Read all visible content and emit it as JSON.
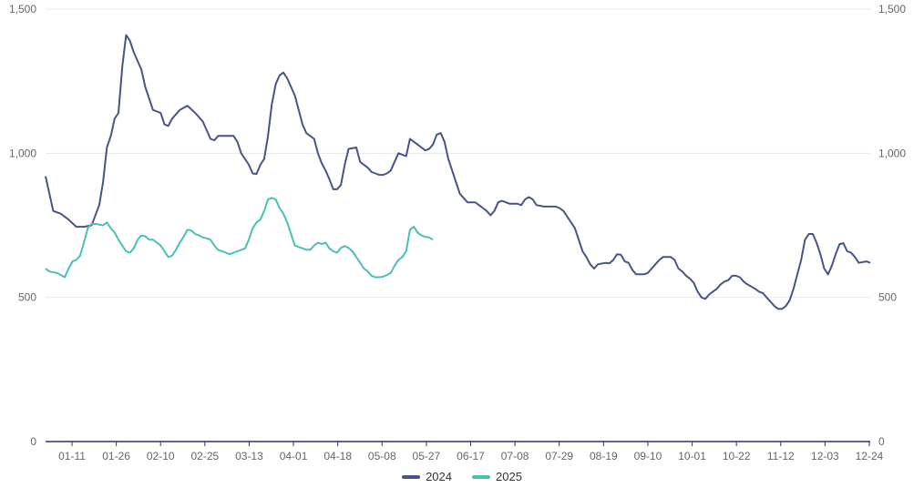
{
  "chart_data": {
    "type": "line",
    "title": "",
    "xlabel": "",
    "ylabel": "",
    "x_tick_labels": [
      "01-11",
      "01-26",
      "02-10",
      "02-25",
      "03-13",
      "04-01",
      "04-18",
      "05-08",
      "05-27",
      "06-17",
      "07-08",
      "07-29",
      "08-19",
      "09-10",
      "10-01",
      "10-22",
      "11-12",
      "12-03",
      "12-24"
    ],
    "y_ticks_left": [
      "0",
      "500",
      "1,000",
      "1,500"
    ],
    "y_ticks_right": [
      "0",
      "500",
      "1,000",
      "1,500"
    ],
    "ylim": [
      0,
      1500
    ],
    "grid": true,
    "legend_position": "bottom-center",
    "series": [
      {
        "name": "2024",
        "color": "#475485",
        "points": [
          [
            0,
            920
          ],
          [
            1,
            860
          ],
          [
            2,
            800
          ],
          [
            4,
            790
          ],
          [
            6,
            770
          ],
          [
            8,
            745
          ],
          [
            10,
            745
          ],
          [
            12,
            750
          ],
          [
            14,
            820
          ],
          [
            15,
            900
          ],
          [
            16,
            1020
          ],
          [
            17,
            1060
          ],
          [
            18,
            1120
          ],
          [
            19,
            1140
          ],
          [
            20,
            1300
          ],
          [
            21,
            1410
          ],
          [
            22,
            1390
          ],
          [
            23,
            1350
          ],
          [
            24,
            1320
          ],
          [
            25,
            1290
          ],
          [
            26,
            1230
          ],
          [
            27,
            1190
          ],
          [
            28,
            1150
          ],
          [
            30,
            1140
          ],
          [
            31,
            1100
          ],
          [
            32,
            1095
          ],
          [
            33,
            1120
          ],
          [
            35,
            1150
          ],
          [
            37,
            1165
          ],
          [
            39,
            1140
          ],
          [
            41,
            1110
          ],
          [
            42,
            1080
          ],
          [
            43,
            1050
          ],
          [
            44,
            1045
          ],
          [
            45,
            1060
          ],
          [
            49,
            1060
          ],
          [
            50,
            1040
          ],
          [
            51,
            1000
          ],
          [
            53,
            960
          ],
          [
            54,
            930
          ],
          [
            55,
            928
          ],
          [
            56,
            960
          ],
          [
            57,
            980
          ],
          [
            58,
            1060
          ],
          [
            59,
            1170
          ],
          [
            60,
            1240
          ],
          [
            61,
            1270
          ],
          [
            62,
            1280
          ],
          [
            63,
            1260
          ],
          [
            64,
            1230
          ],
          [
            65,
            1200
          ],
          [
            66,
            1150
          ],
          [
            67,
            1100
          ],
          [
            68,
            1070
          ],
          [
            70,
            1050
          ],
          [
            71,
            1000
          ],
          [
            72,
            965
          ],
          [
            73,
            940
          ],
          [
            74,
            910
          ],
          [
            75,
            875
          ],
          [
            76,
            875
          ],
          [
            77,
            890
          ],
          [
            78,
            960
          ],
          [
            79,
            1015
          ],
          [
            81,
            1020
          ],
          [
            82,
            970
          ],
          [
            84,
            950
          ],
          [
            85,
            935
          ],
          [
            86,
            930
          ],
          [
            87,
            925
          ],
          [
            88,
            925
          ],
          [
            89,
            930
          ],
          [
            90,
            940
          ],
          [
            91,
            970
          ],
          [
            92,
            1000
          ],
          [
            93,
            995
          ],
          [
            94,
            990
          ],
          [
            95,
            1050
          ],
          [
            96,
            1040
          ],
          [
            97,
            1030
          ],
          [
            98,
            1020
          ],
          [
            99,
            1010
          ],
          [
            100,
            1015
          ],
          [
            101,
            1030
          ],
          [
            102,
            1065
          ],
          [
            103,
            1070
          ],
          [
            104,
            1040
          ],
          [
            105,
            980
          ],
          [
            106,
            940
          ],
          [
            107,
            900
          ],
          [
            108,
            860
          ],
          [
            109,
            845
          ],
          [
            110,
            830
          ],
          [
            112,
            830
          ],
          [
            113,
            820
          ],
          [
            114,
            810
          ],
          [
            115,
            800
          ],
          [
            116,
            785
          ],
          [
            117,
            800
          ],
          [
            118,
            830
          ],
          [
            119,
            835
          ],
          [
            121,
            825
          ],
          [
            123,
            825
          ],
          [
            124,
            820
          ],
          [
            125,
            840
          ],
          [
            126,
            848
          ],
          [
            127,
            840
          ],
          [
            128,
            820
          ],
          [
            130,
            815
          ],
          [
            133,
            815
          ],
          [
            134,
            810
          ],
          [
            135,
            800
          ],
          [
            136,
            780
          ],
          [
            137,
            760
          ],
          [
            138,
            740
          ],
          [
            139,
            700
          ],
          [
            140,
            660
          ],
          [
            141,
            640
          ],
          [
            142,
            615
          ],
          [
            143,
            600
          ],
          [
            144,
            615
          ],
          [
            146,
            620
          ],
          [
            147,
            618
          ],
          [
            148,
            630
          ],
          [
            149,
            650
          ],
          [
            150,
            648
          ],
          [
            151,
            625
          ],
          [
            152,
            620
          ],
          [
            153,
            595
          ],
          [
            154,
            580
          ],
          [
            156,
            580
          ],
          [
            157,
            585
          ],
          [
            158,
            600
          ],
          [
            159,
            615
          ],
          [
            160,
            630
          ],
          [
            161,
            640
          ],
          [
            163,
            640
          ],
          [
            164,
            630
          ],
          [
            165,
            600
          ],
          [
            166,
            590
          ],
          [
            167,
            575
          ],
          [
            168,
            565
          ],
          [
            169,
            550
          ],
          [
            170,
            520
          ],
          [
            171,
            500
          ],
          [
            172,
            495
          ],
          [
            173,
            510
          ],
          [
            174,
            520
          ],
          [
            175,
            530
          ],
          [
            176,
            545
          ],
          [
            177,
            555
          ],
          [
            178,
            560
          ],
          [
            179,
            575
          ],
          [
            180,
            575
          ],
          [
            181,
            570
          ],
          [
            182,
            555
          ],
          [
            183,
            545
          ],
          [
            185,
            530
          ],
          [
            186,
            520
          ],
          [
            187,
            515
          ],
          [
            188,
            500
          ],
          [
            189,
            485
          ],
          [
            190,
            470
          ],
          [
            191,
            460
          ],
          [
            192,
            460
          ],
          [
            193,
            470
          ],
          [
            194,
            490
          ],
          [
            195,
            530
          ],
          [
            196,
            580
          ],
          [
            197,
            630
          ],
          [
            198,
            700
          ],
          [
            199,
            720
          ],
          [
            200,
            720
          ],
          [
            201,
            690
          ],
          [
            202,
            650
          ],
          [
            203,
            600
          ],
          [
            204,
            580
          ],
          [
            205,
            610
          ],
          [
            206,
            650
          ],
          [
            207,
            685
          ],
          [
            208,
            688
          ],
          [
            209,
            660
          ],
          [
            210,
            655
          ],
          [
            211,
            640
          ],
          [
            212,
            620
          ],
          [
            214,
            625
          ],
          [
            215,
            620
          ]
        ]
      },
      {
        "name": "2025",
        "color": "#4bbfb7",
        "points": [
          [
            0,
            600
          ],
          [
            1,
            590
          ],
          [
            3,
            585
          ],
          [
            5,
            570
          ],
          [
            6,
            600
          ],
          [
            7,
            625
          ],
          [
            8,
            630
          ],
          [
            9,
            645
          ],
          [
            10,
            690
          ],
          [
            11,
            740
          ],
          [
            12,
            755
          ],
          [
            13,
            755
          ],
          [
            15,
            750
          ],
          [
            16,
            760
          ],
          [
            17,
            740
          ],
          [
            18,
            725
          ],
          [
            19,
            700
          ],
          [
            20,
            680
          ],
          [
            21,
            660
          ],
          [
            22,
            655
          ],
          [
            23,
            670
          ],
          [
            24,
            700
          ],
          [
            25,
            715
          ],
          [
            26,
            712
          ],
          [
            27,
            700
          ],
          [
            28,
            700
          ],
          [
            29,
            690
          ],
          [
            30,
            680
          ],
          [
            31,
            660
          ],
          [
            32,
            640
          ],
          [
            33,
            645
          ],
          [
            34,
            665
          ],
          [
            35,
            690
          ],
          [
            36,
            710
          ],
          [
            37,
            735
          ],
          [
            38,
            732
          ],
          [
            39,
            720
          ],
          [
            40,
            715
          ],
          [
            41,
            708
          ],
          [
            42,
            705
          ],
          [
            43,
            700
          ],
          [
            44,
            680
          ],
          [
            45,
            665
          ],
          [
            46,
            660
          ],
          [
            47,
            655
          ],
          [
            48,
            650
          ],
          [
            49,
            655
          ],
          [
            50,
            660
          ],
          [
            51,
            665
          ],
          [
            52,
            670
          ],
          [
            53,
            700
          ],
          [
            54,
            740
          ],
          [
            55,
            760
          ],
          [
            56,
            770
          ],
          [
            57,
            800
          ],
          [
            58,
            840
          ],
          [
            59,
            845
          ],
          [
            60,
            840
          ],
          [
            61,
            810
          ],
          [
            62,
            790
          ],
          [
            63,
            760
          ],
          [
            64,
            720
          ],
          [
            65,
            680
          ],
          [
            66,
            675
          ],
          [
            67,
            670
          ],
          [
            68,
            665
          ],
          [
            69,
            665
          ],
          [
            70,
            680
          ],
          [
            71,
            690
          ],
          [
            72,
            685
          ],
          [
            73,
            690
          ],
          [
            74,
            670
          ],
          [
            75,
            660
          ],
          [
            76,
            655
          ],
          [
            77,
            672
          ],
          [
            78,
            678
          ],
          [
            79,
            672
          ],
          [
            80,
            660
          ],
          [
            81,
            640
          ],
          [
            82,
            620
          ],
          [
            83,
            600
          ],
          [
            84,
            590
          ],
          [
            85,
            575
          ],
          [
            86,
            570
          ],
          [
            87,
            570
          ],
          [
            88,
            572
          ],
          [
            89,
            578
          ],
          [
            90,
            585
          ],
          [
            91,
            610
          ],
          [
            92,
            630
          ],
          [
            93,
            640
          ],
          [
            94,
            660
          ],
          [
            95,
            735
          ],
          [
            96,
            745
          ],
          [
            97,
            725
          ],
          [
            98,
            715
          ],
          [
            99,
            710
          ],
          [
            100,
            708
          ],
          [
            101,
            700
          ]
        ]
      }
    ]
  }
}
